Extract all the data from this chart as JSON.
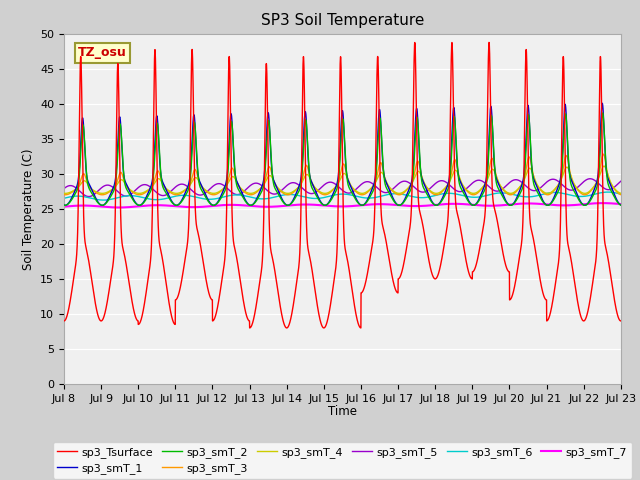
{
  "title": "SP3 Soil Temperature",
  "ylabel": "Soil Temperature (C)",
  "xlabel": "Time",
  "annotation": "TZ_osu",
  "annotation_color": "#cc0000",
  "annotation_bg": "#ffffcc",
  "annotation_border": "#999933",
  "ylim": [
    0,
    50
  ],
  "yticks": [
    0,
    5,
    10,
    15,
    20,
    25,
    30,
    35,
    40,
    45,
    50
  ],
  "xtick_labels": [
    "Jul 8",
    "Jul 9",
    "Jul 10",
    "Jul 11",
    "Jul 12",
    "Jul 13",
    "Jul 14",
    "Jul 15",
    "Jul 16",
    "Jul 17",
    "Jul 18",
    "Jul 19",
    "Jul 20",
    "Jul 21",
    "Jul 22",
    "Jul 23"
  ],
  "fig_bg": "#d0d0d0",
  "plot_bg": "#f0f0f0",
  "series_colors": {
    "sp3_Tsurface": "#ff0000",
    "sp3_smT_1": "#0000cc",
    "sp3_smT_2": "#00bb00",
    "sp3_smT_3": "#ff9900",
    "sp3_smT_4": "#cccc00",
    "sp3_smT_5": "#9900cc",
    "sp3_smT_6": "#00cccc",
    "sp3_smT_7": "#ff00ff"
  },
  "legend_entries": [
    "sp3_Tsurface",
    "sp3_smT_1",
    "sp3_smT_2",
    "sp3_smT_3",
    "sp3_smT_4",
    "sp3_smT_5",
    "sp3_smT_6",
    "sp3_smT_7"
  ]
}
